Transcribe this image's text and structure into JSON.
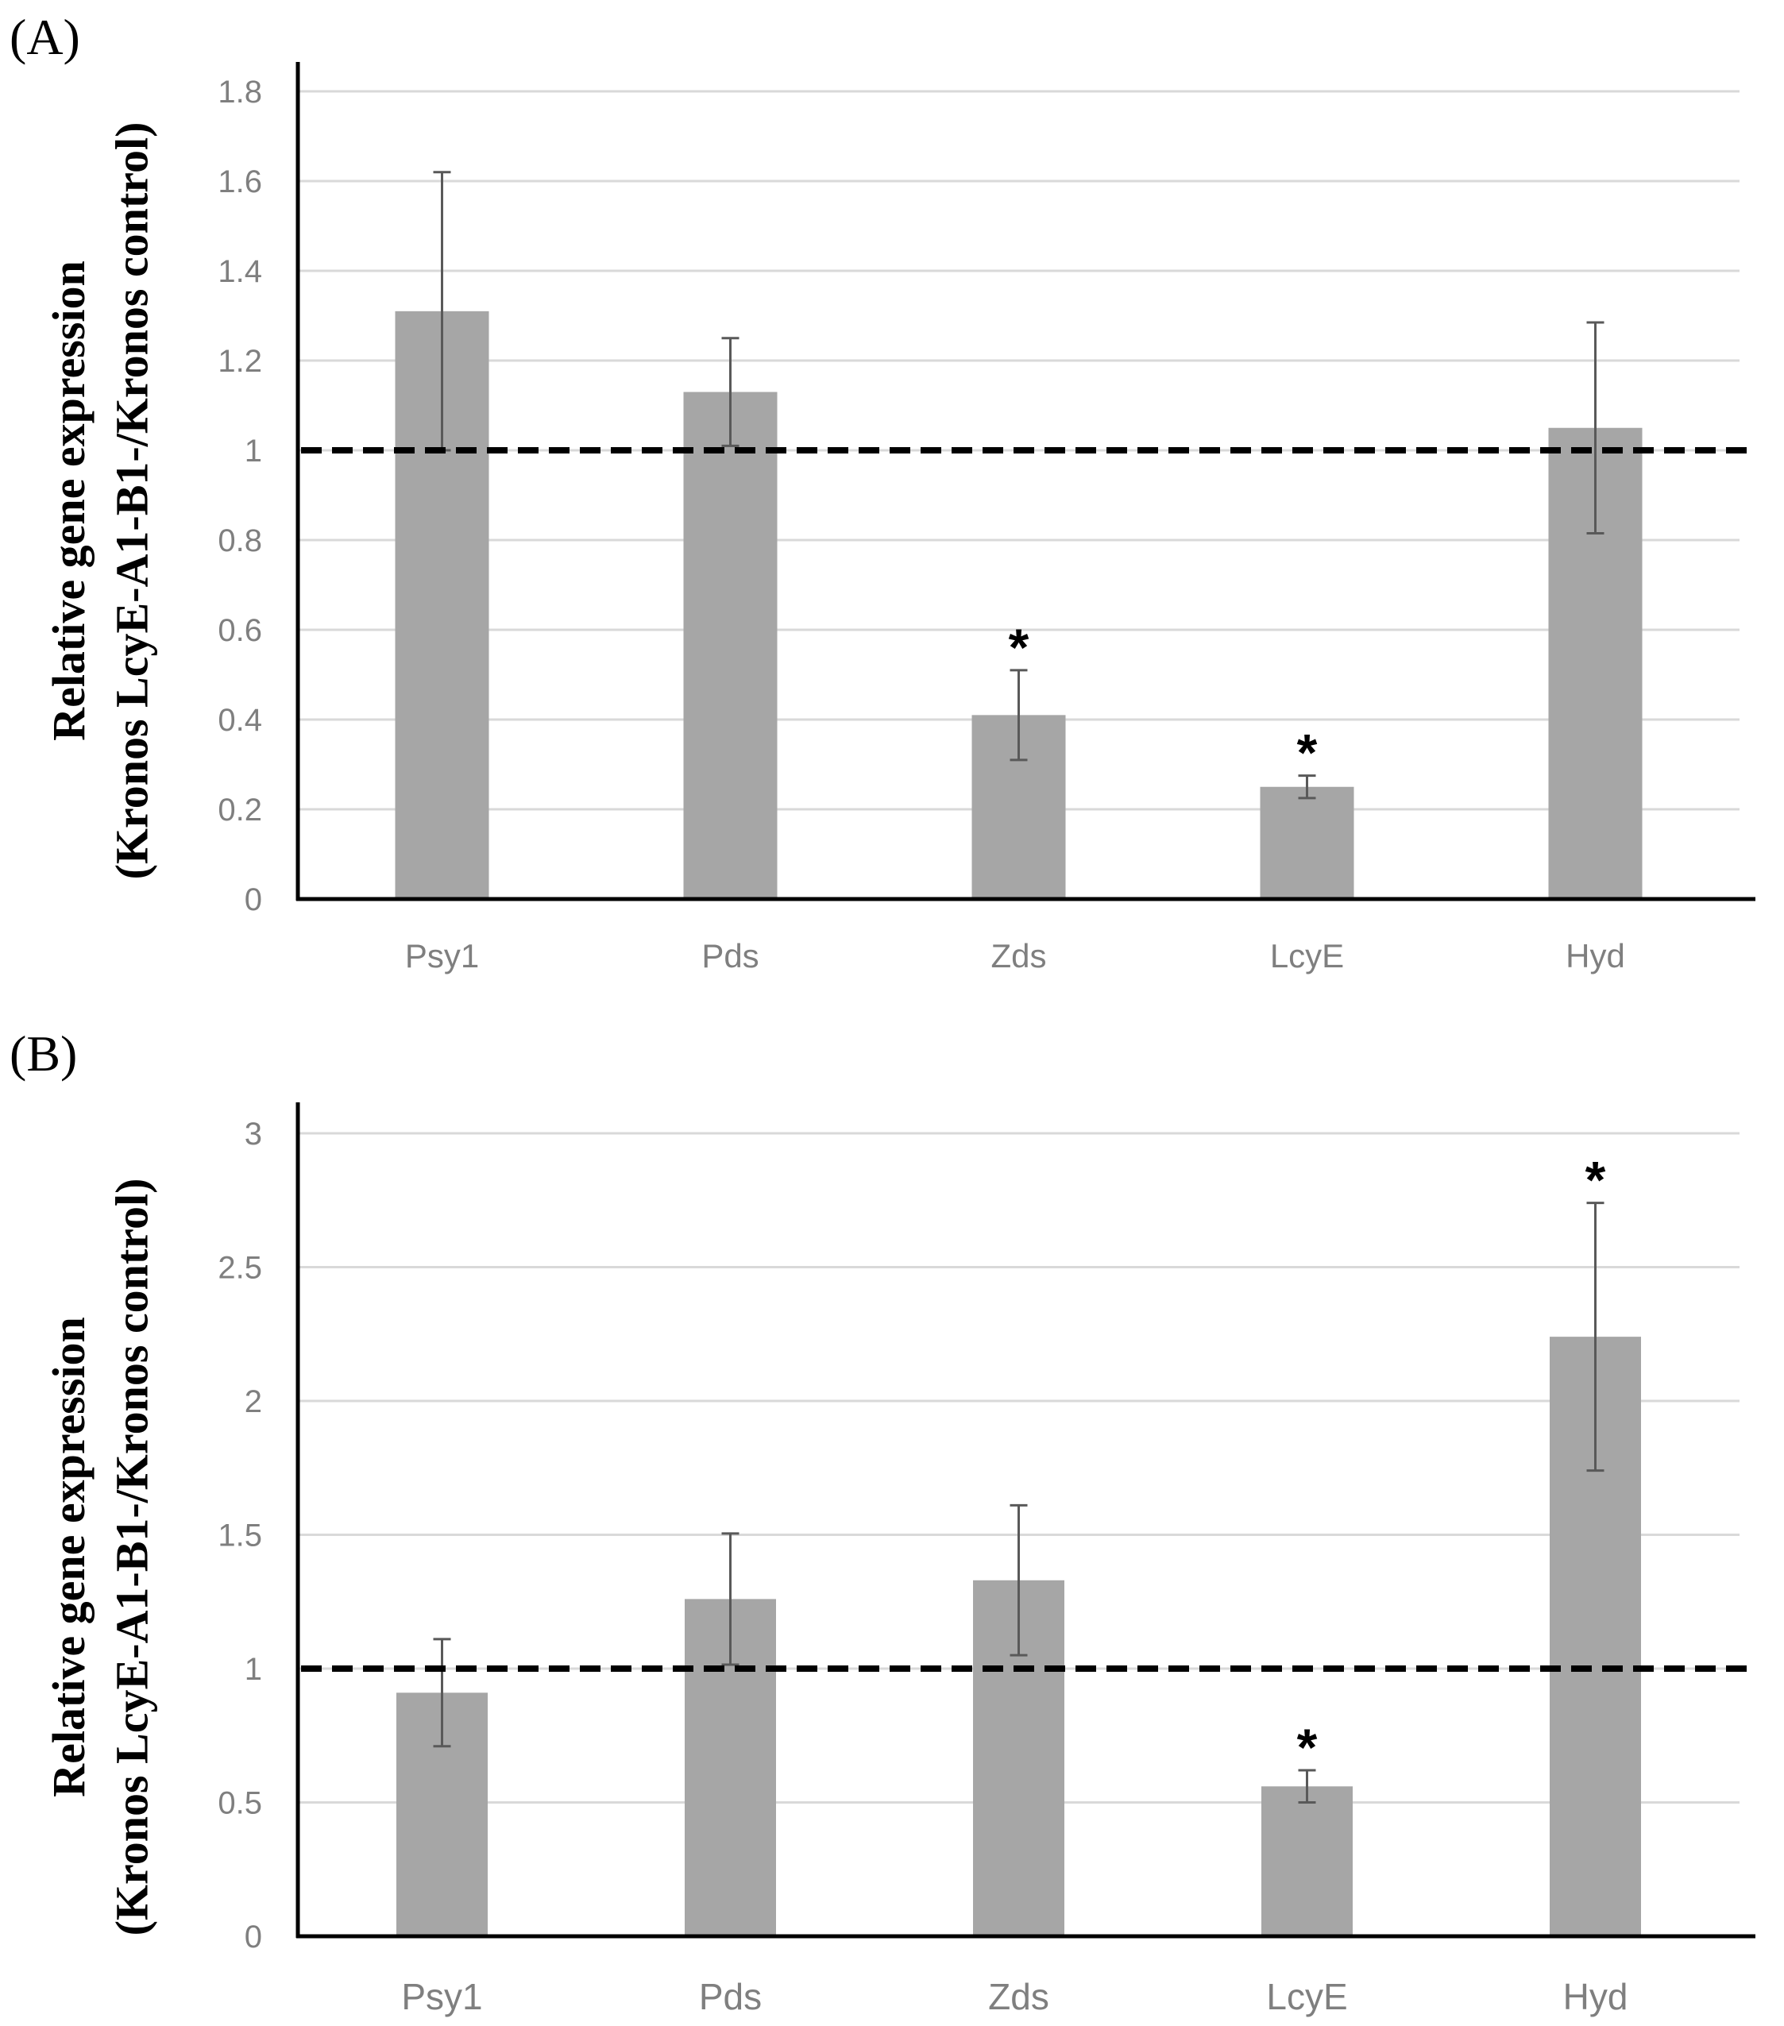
{
  "chart_data": [
    {
      "type": "bar",
      "panel_label": "(A)",
      "ylabel_line1": "Relative gene expression",
      "ylabel_line2": "(Kronos LcyE-A1-B1-/Kronos control)",
      "categories": [
        "Psy1",
        "Pds",
        "Zds",
        "LcyE",
        "Hyd"
      ],
      "values": [
        1.31,
        1.13,
        0.41,
        0.25,
        1.05
      ],
      "error": [
        0.31,
        0.12,
        0.1,
        0.025,
        0.235
      ],
      "significant": [
        "",
        "",
        "*",
        "*",
        ""
      ],
      "reference_line": 1,
      "ylim": [
        0,
        1.8
      ],
      "yticks": [
        0,
        0.2,
        0.4,
        0.6,
        0.8,
        1,
        1.2,
        1.4,
        1.6,
        1.8
      ],
      "ytick_labels": [
        "0",
        "0.2",
        "0.4",
        "0.6",
        "0.8",
        "1",
        "1.2",
        "1.4",
        "1.6",
        "1.8"
      ],
      "bar_color": "#a6a6a6",
      "grid": true
    },
    {
      "type": "bar",
      "panel_label": "(B)",
      "ylabel_line1": "Relative gene expression",
      "ylabel_line2": "(Kronos LcyE-A1-B1-/Kronos control)",
      "categories": [
        "Psy1",
        "Pds",
        "Zds",
        "LcyE",
        "Hyd"
      ],
      "values": [
        0.91,
        1.26,
        1.33,
        0.56,
        2.24
      ],
      "error": [
        0.2,
        0.245,
        0.28,
        0.06,
        0.5
      ],
      "significant": [
        "",
        "",
        "",
        "*",
        "*"
      ],
      "reference_line": 1,
      "ylim": [
        0,
        3
      ],
      "yticks": [
        0,
        0.5,
        1,
        1.5,
        2,
        2.5,
        3
      ],
      "ytick_labels": [
        "0",
        "0.5",
        "1",
        "1.5",
        "2",
        "2.5",
        "3"
      ],
      "bar_color": "#a6a6a6",
      "grid": true
    }
  ]
}
